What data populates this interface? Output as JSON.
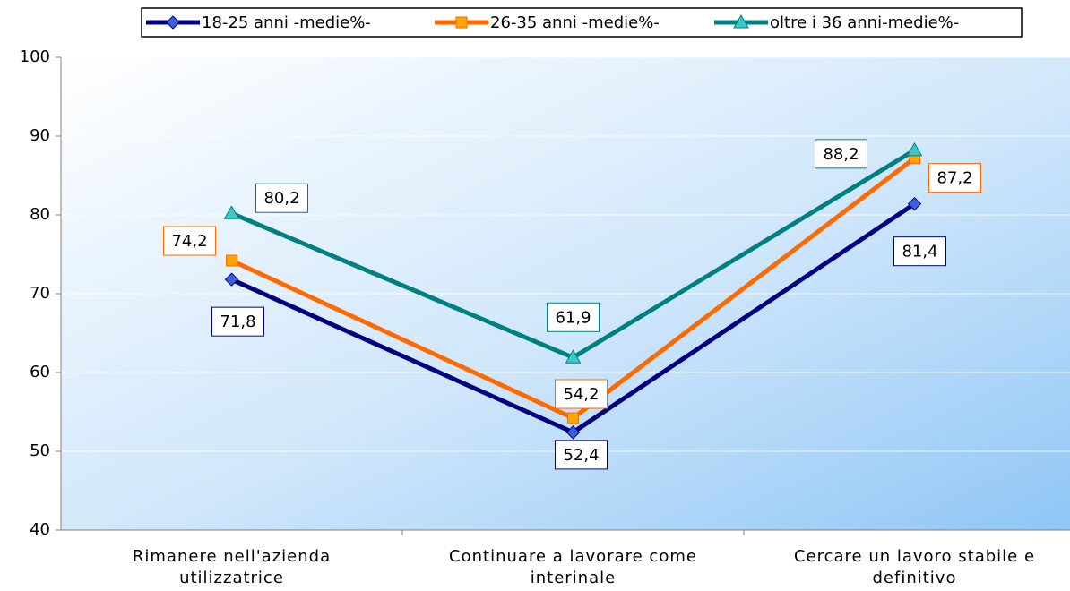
{
  "chart_data": {
    "type": "line",
    "categories": [
      "Rimanere nell'azienda utilizzatrice",
      "Continuare a lavorare come interinale",
      "Cercare un lavoro stabile e definitivo"
    ],
    "series": [
      {
        "name": "18-25 anni -medie%-",
        "color": "#000080",
        "marker_color": "#3a5fe0",
        "marker": "diamond",
        "values": [
          71.8,
          52.4,
          81.4
        ],
        "value_labels": [
          "71,8",
          "52,4",
          "81,4"
        ]
      },
      {
        "name": "26-35 anni -medie%-",
        "color": "#ff6a00",
        "marker_color": "#ffa500",
        "marker": "square",
        "values": [
          74.2,
          54.2,
          87.2
        ],
        "value_labels": [
          "74,2",
          "54,2",
          "87,2"
        ]
      },
      {
        "name": "oltre i 36 anni-medie%-",
        "color": "#008080",
        "marker_color": "#3cc8c8",
        "marker": "triangle",
        "values": [
          80.2,
          61.9,
          88.2
        ],
        "value_labels": [
          "80,2",
          "61,9",
          "88,2"
        ]
      }
    ],
    "ylim": [
      40,
      100
    ],
    "yticks": [
      40,
      50,
      60,
      70,
      80,
      90,
      100
    ],
    "grid": true,
    "legend": "top"
  }
}
